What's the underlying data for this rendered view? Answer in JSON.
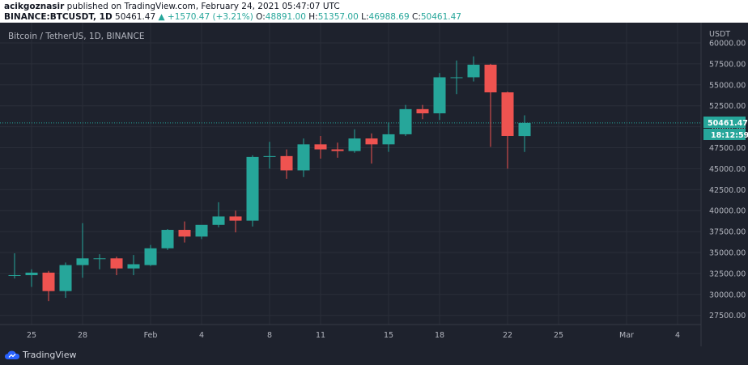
{
  "header": {
    "publisher": "acikgoznasir",
    "published_text": "published on TradingView.com, February 24, 2021 05:47:07 UTC",
    "symbol": "BINANCE:BTCUSDT, 1D",
    "last": "50461.47",
    "change": "▲ +1570.47 (+3.21%)",
    "o_label": "O:",
    "o_value": "48891.00",
    "h_label": "H:",
    "h_value": "51357.00",
    "l_label": "L:",
    "l_value": "46988.69",
    "c_label": "C:",
    "c_value": "50461.47"
  },
  "legend": "Bitcoin / TetherUS, 1D, BINANCE",
  "price_axis": {
    "currency": "USDT",
    "ticks": [
      "60000.00",
      "57500.00",
      "55000.00",
      "52500.00",
      "50000.00",
      "47500.00",
      "45000.00",
      "42500.00",
      "40000.00",
      "37500.00",
      "35000.00",
      "32500.00",
      "30000.00",
      "27500.00"
    ],
    "last_price_label": "50461.47",
    "countdown_label": "18:12:59"
  },
  "date_axis": {
    "ticks": [
      "25",
      "28",
      "Feb",
      "4",
      "8",
      "11",
      "15",
      "18",
      "22",
      "25",
      "Mar",
      "4"
    ]
  },
  "footer": {
    "brand": "TradingView"
  },
  "colors": {
    "up": "#26a69a",
    "down": "#ef5350",
    "background": "#1e222d",
    "grid": "#2a2e39"
  },
  "chart_data": {
    "type": "candlestick",
    "title": "Bitcoin / TetherUS, 1D, BINANCE",
    "ylim": [
      26000,
      61500
    ],
    "y_ticks": [
      60000,
      57500,
      55000,
      52500,
      50000,
      47500,
      45000,
      42500,
      40000,
      37500,
      35000,
      32500,
      30000,
      27500
    ],
    "candles": [
      {
        "date": "2021-01-24",
        "open": 32300,
        "high": 34900,
        "low": 31900,
        "close": 32300
      },
      {
        "date": "2021-01-25",
        "open": 32300,
        "high": 33000,
        "low": 30900,
        "close": 32600
      },
      {
        "date": "2021-01-26",
        "open": 32600,
        "high": 32800,
        "low": 29200,
        "close": 30400
      },
      {
        "date": "2021-01-27",
        "open": 30400,
        "high": 33800,
        "low": 29600,
        "close": 33500
      },
      {
        "date": "2021-01-28",
        "open": 33500,
        "high": 38500,
        "low": 32000,
        "close": 34300
      },
      {
        "date": "2021-01-29",
        "open": 34300,
        "high": 34800,
        "low": 33000,
        "close": 34300
      },
      {
        "date": "2021-01-30",
        "open": 34300,
        "high": 34500,
        "low": 32300,
        "close": 33100
      },
      {
        "date": "2021-01-31",
        "open": 33100,
        "high": 34700,
        "low": 32300,
        "close": 33600
      },
      {
        "date": "2021-02-01",
        "open": 33500,
        "high": 35900,
        "low": 33400,
        "close": 35500
      },
      {
        "date": "2021-02-02",
        "open": 35500,
        "high": 37800,
        "low": 35300,
        "close": 37700
      },
      {
        "date": "2021-02-03",
        "open": 37700,
        "high": 38700,
        "low": 36200,
        "close": 36900
      },
      {
        "date": "2021-02-04",
        "open": 36900,
        "high": 38200,
        "low": 36600,
        "close": 38300
      },
      {
        "date": "2021-02-05",
        "open": 38300,
        "high": 41000,
        "low": 38000,
        "close": 39300
      },
      {
        "date": "2021-02-06",
        "open": 39300,
        "high": 40000,
        "low": 37400,
        "close": 38800
      },
      {
        "date": "2021-02-07",
        "open": 38800,
        "high": 46600,
        "low": 38100,
        "close": 46400
      },
      {
        "date": "2021-02-08",
        "open": 46400,
        "high": 48200,
        "low": 45000,
        "close": 46500
      },
      {
        "date": "2021-02-09",
        "open": 46500,
        "high": 47300,
        "low": 43800,
        "close": 44800
      },
      {
        "date": "2021-02-10",
        "open": 44800,
        "high": 48600,
        "low": 44000,
        "close": 47900
      },
      {
        "date": "2021-02-11",
        "open": 47900,
        "high": 48900,
        "low": 46200,
        "close": 47300
      },
      {
        "date": "2021-02-12",
        "open": 47300,
        "high": 48100,
        "low": 46300,
        "close": 47100
      },
      {
        "date": "2021-02-13",
        "open": 47100,
        "high": 49700,
        "low": 46900,
        "close": 48600
      },
      {
        "date": "2021-02-14",
        "open": 48600,
        "high": 49200,
        "low": 45600,
        "close": 47900
      },
      {
        "date": "2021-02-15",
        "open": 47900,
        "high": 50500,
        "low": 47000,
        "close": 49100
      },
      {
        "date": "2021-02-16",
        "open": 49100,
        "high": 52600,
        "low": 48900,
        "close": 52100
      },
      {
        "date": "2021-02-17",
        "open": 52100,
        "high": 52600,
        "low": 50900,
        "close": 51600
      },
      {
        "date": "2021-02-18",
        "open": 51600,
        "high": 56400,
        "low": 50800,
        "close": 55900
      },
      {
        "date": "2021-02-19",
        "open": 55900,
        "high": 57900,
        "low": 53900,
        "close": 55900
      },
      {
        "date": "2021-02-20",
        "open": 55900,
        "high": 58400,
        "low": 55400,
        "close": 57400
      },
      {
        "date": "2021-02-21",
        "open": 57400,
        "high": 57500,
        "low": 47600,
        "close": 54100
      },
      {
        "date": "2021-02-22",
        "open": 54100,
        "high": 54200,
        "low": 45000,
        "close": 48900
      },
      {
        "date": "2021-02-23",
        "open": 48891.0,
        "high": 51357.0,
        "low": 46988.69,
        "close": 50461.47
      }
    ]
  }
}
